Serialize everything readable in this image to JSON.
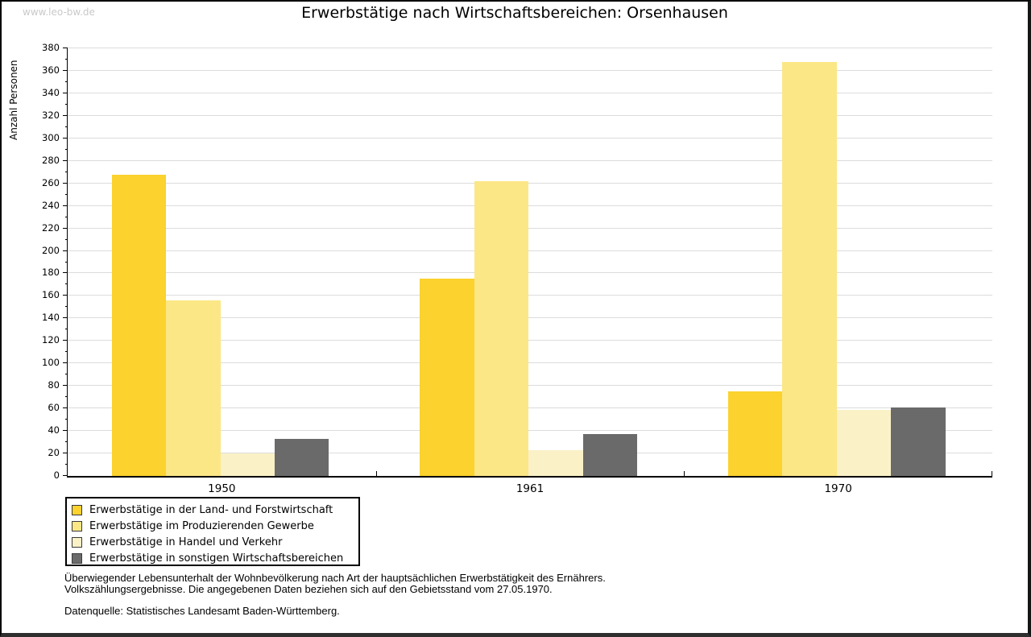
{
  "watermark": "www.leo-bw.de",
  "header": {
    "title": "Erwerbstätige nach Wirtschaftsbereichen: Orsenhausen"
  },
  "chart_data": {
    "type": "bar",
    "title": "Erwerbstätige nach Wirtschaftsbereichen: Orsenhausen",
    "xlabel": "",
    "ylabel": "Anzahl Personen",
    "categories": [
      "1950",
      "1961",
      "1970"
    ],
    "series": [
      {
        "name": "Erwerbstätige in der Land- und Forstwirtschaft",
        "color": "#FBD22E",
        "values": [
          268,
          175,
          75
        ]
      },
      {
        "name": "Erwerbstätige im Produzierenden Gewerbe",
        "color": "#FBE786",
        "values": [
          156,
          262,
          368
        ]
      },
      {
        "name": "Erwerbstätige in Handel und Verkehr",
        "color": "#FAF1C7",
        "values": [
          20,
          23,
          59
        ]
      },
      {
        "name": "Erwerbstätige in sonstigen Wirtschaftsbereichen",
        "color": "#6A6A6A",
        "values": [
          33,
          37,
          61
        ]
      }
    ],
    "ylim": [
      0,
      380
    ],
    "ytick_step": 20,
    "yminor_step": 10,
    "grid": true,
    "gridline_color": "#DCDCDC",
    "axis_color": "#000000",
    "legend_position": "bottom-left"
  },
  "footer": {
    "note_line1": "Überwiegender Lebensunterhalt der Wohnbevölkerung nach Art der hauptsächlichen Erwerbstätigkeit des Ernährers.",
    "note_line2": "Volkszählungsergebnisse. Die angegebenen Daten beziehen sich auf den Gebietsstand vom 27.05.1970.",
    "source": "Datenquelle: Statistisches Landesamt Baden-Württemberg."
  }
}
